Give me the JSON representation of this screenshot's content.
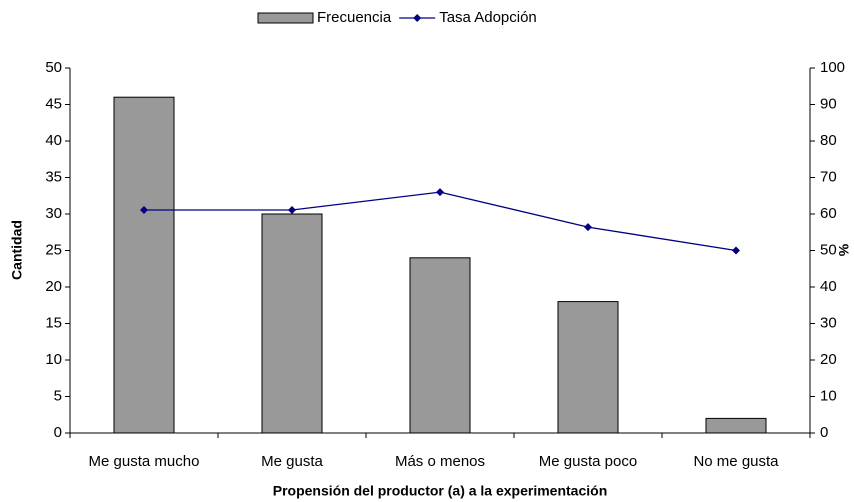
{
  "chart_data": {
    "type": "bar",
    "categories": [
      "Me gusta mucho",
      "Me gusta",
      "Más o menos",
      "Me gusta poco",
      "No me gusta"
    ],
    "series": [
      {
        "name": "Frecuencia",
        "type": "bar",
        "color": "#999999",
        "values": [
          46,
          30,
          24,
          18,
          2
        ]
      },
      {
        "name": "Tasa Adopción",
        "type": "line",
        "axis": "y2",
        "color": "#000080",
        "values": [
          61.1,
          61.1,
          66,
          56.4,
          50
        ]
      }
    ],
    "ylabel": "Cantidad",
    "y2label": "%",
    "xlabel": "Propensión del productor (a) a la experimentación",
    "ylim": [
      0,
      50
    ],
    "yticks": [
      0,
      5,
      10,
      15,
      20,
      25,
      30,
      35,
      40,
      45,
      50
    ],
    "y2lim": [
      0,
      100
    ],
    "y2ticks": [
      0,
      10,
      20,
      30,
      40,
      50,
      60,
      70,
      80,
      90,
      100
    ],
    "grid": false,
    "legend": "top"
  }
}
